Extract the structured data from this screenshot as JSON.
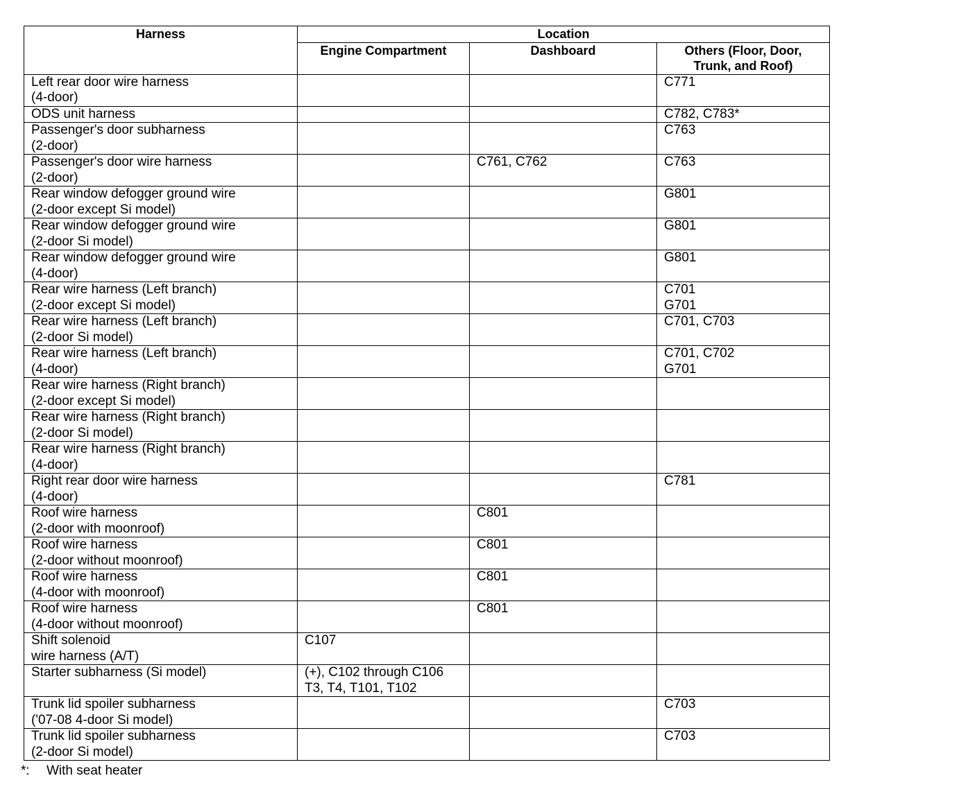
{
  "table": {
    "headers": {
      "harness": "Harness",
      "location": "Location",
      "engine": "Engine Compartment",
      "dashboard": "Dashboard",
      "others_line1": "Others (Floor, Door,",
      "others_line2": "Trunk, and Roof)"
    },
    "rows": [
      {
        "harness": [
          "Left rear door wire harness",
          "(4-door)"
        ],
        "engine": [],
        "dashboard": [],
        "others": [
          "C771"
        ]
      },
      {
        "harness": [
          "ODS unit harness"
        ],
        "engine": [],
        "dashboard": [],
        "others": [
          "C782, C783*"
        ]
      },
      {
        "harness": [
          "Passenger's door subharness",
          "(2-door)"
        ],
        "engine": [],
        "dashboard": [],
        "others": [
          "C763"
        ]
      },
      {
        "harness": [
          "Passenger's door wire harness",
          "(2-door)"
        ],
        "engine": [],
        "dashboard": [
          "C761, C762"
        ],
        "others": [
          "C763"
        ]
      },
      {
        "harness": [
          "Rear window defogger ground wire",
          "(2-door except Si model)"
        ],
        "engine": [],
        "dashboard": [],
        "others": [
          "G801"
        ]
      },
      {
        "harness": [
          "Rear window defogger ground wire",
          "(2-door Si model)"
        ],
        "engine": [],
        "dashboard": [],
        "others": [
          "G801"
        ]
      },
      {
        "harness": [
          "Rear window defogger ground wire",
          "(4-door)"
        ],
        "engine": [],
        "dashboard": [],
        "others": [
          "G801"
        ]
      },
      {
        "harness": [
          "Rear wire harness (Left branch)",
          "(2-door except Si model)"
        ],
        "engine": [],
        "dashboard": [],
        "others": [
          "C701",
          "G701"
        ]
      },
      {
        "harness": [
          "Rear wire harness (Left branch)",
          "(2-door Si model)"
        ],
        "engine": [],
        "dashboard": [],
        "others": [
          "C701, C703"
        ]
      },
      {
        "harness": [
          "Rear wire harness (Left branch)",
          "(4-door)"
        ],
        "engine": [],
        "dashboard": [],
        "others": [
          "C701, C702",
          "G701"
        ]
      },
      {
        "harness": [
          "Rear wire harness (Right branch)",
          "(2-door except Si model)"
        ],
        "engine": [],
        "dashboard": [],
        "others": []
      },
      {
        "harness": [
          "Rear wire harness (Right branch)",
          "(2-door Si model)"
        ],
        "engine": [],
        "dashboard": [],
        "others": []
      },
      {
        "harness": [
          "Rear wire harness (Right branch)",
          "(4-door)"
        ],
        "engine": [],
        "dashboard": [],
        "others": []
      },
      {
        "harness": [
          "Right rear door wire harness",
          "(4-door)"
        ],
        "engine": [],
        "dashboard": [],
        "others": [
          "C781"
        ]
      },
      {
        "harness": [
          "Roof wire harness",
          "(2-door with moonroof)"
        ],
        "engine": [],
        "dashboard": [
          "C801"
        ],
        "others": []
      },
      {
        "harness": [
          "Roof wire harness",
          "(2-door without moonroof)"
        ],
        "engine": [],
        "dashboard": [
          "C801"
        ],
        "others": []
      },
      {
        "harness": [
          "Roof wire harness",
          "(4-door with moonroof)"
        ],
        "engine": [],
        "dashboard": [
          "C801"
        ],
        "others": []
      },
      {
        "harness": [
          "Roof wire harness",
          "(4-door without moonroof)"
        ],
        "engine": [],
        "dashboard": [
          "C801"
        ],
        "others": []
      },
      {
        "harness": [
          "Shift solenoid",
          "wire harness (A/T)"
        ],
        "engine": [
          "C107"
        ],
        "dashboard": [],
        "others": []
      },
      {
        "harness": [
          "Starter subharness (Si model)"
        ],
        "engine": [
          "(+), C102 through C106",
          "T3, T4, T101, T102"
        ],
        "dashboard": [],
        "others": []
      },
      {
        "harness": [
          "Trunk lid spoiler subharness",
          "('07-08 4-door Si model)"
        ],
        "engine": [],
        "dashboard": [],
        "others": [
          "C703"
        ]
      },
      {
        "harness": [
          "Trunk lid spoiler subharness",
          "(2-door Si model)"
        ],
        "engine": [],
        "dashboard": [],
        "others": [
          "C703"
        ]
      }
    ]
  },
  "footnote": {
    "marker": "*:",
    "text": "With seat heater"
  }
}
